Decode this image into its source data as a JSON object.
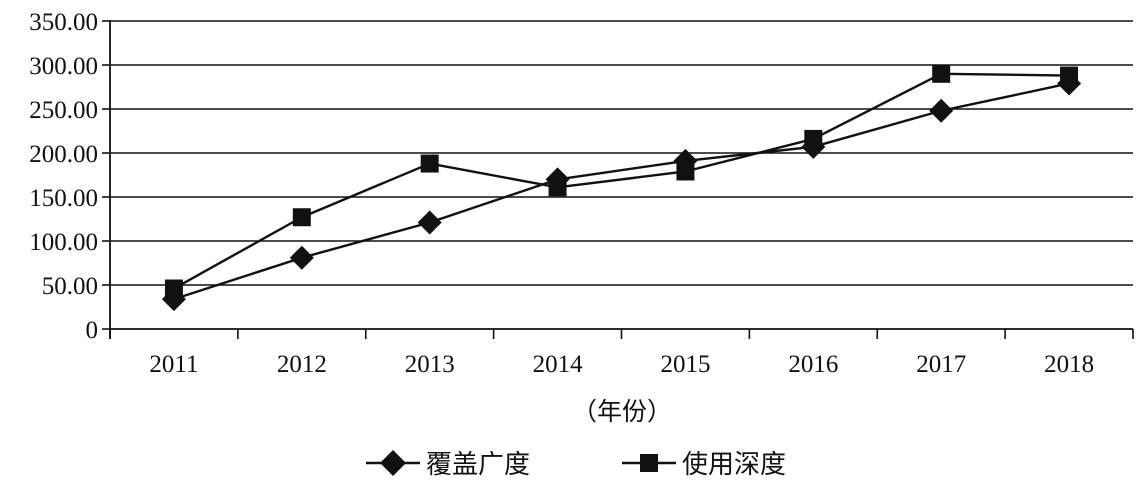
{
  "chart_data": {
    "type": "line",
    "categories": [
      "2011",
      "2012",
      "2013",
      "2014",
      "2015",
      "2016",
      "2017",
      "2018"
    ],
    "series": [
      {
        "name": "覆盖广度",
        "marker": "diamond",
        "values": [
          34,
          81,
          121,
          170,
          191,
          207,
          248,
          279
        ]
      },
      {
        "name": "使用深度",
        "marker": "square",
        "values": [
          46,
          127,
          188,
          161,
          179,
          216,
          290,
          288
        ]
      }
    ],
    "ylim": [
      0,
      350
    ],
    "yticks": [
      "0",
      "50.00",
      "100.00",
      "150.00",
      "200.00",
      "250.00",
      "300.00",
      "350.00"
    ],
    "xlabel": "（年份）",
    "ylabel": "",
    "title": "",
    "grid": true,
    "legend_position": "bottom",
    "colors": {
      "line": "#111111",
      "grid": "#111111"
    }
  }
}
